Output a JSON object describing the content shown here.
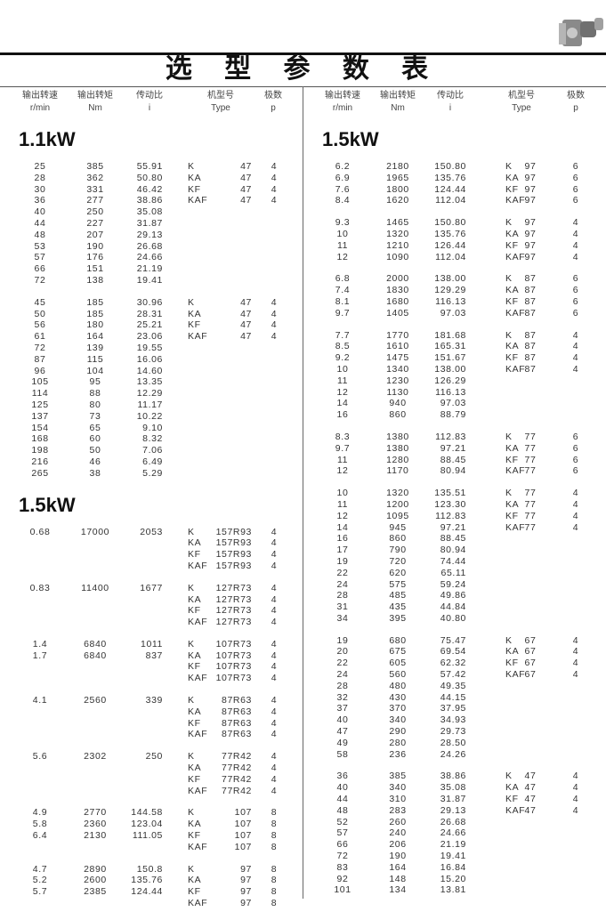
{
  "title": "选 型 参 数 表",
  "decor_icon": "gearbox-motor-image",
  "columns": [
    {
      "cn": "输出转速",
      "en": "r/min"
    },
    {
      "cn": "输出转矩",
      "en": "Nm"
    },
    {
      "cn": "传动比",
      "en": "i"
    },
    {
      "cn": "机型号",
      "en": "Type"
    },
    {
      "cn": "极数",
      "en": "p"
    }
  ],
  "left": [
    {
      "heading": "1.1kW",
      "groups": [
        {
          "rows": [
            [
              "25",
              "385",
              "55.91"
            ],
            [
              "28",
              "362",
              "50.80"
            ],
            [
              "30",
              "331",
              "46.42"
            ],
            [
              "36",
              "277",
              "38.86"
            ],
            [
              "40",
              "250",
              "35.08"
            ],
            [
              "44",
              "227",
              "31.87"
            ],
            [
              "48",
              "207",
              "29.13"
            ],
            [
              "53",
              "190",
              "26.68"
            ],
            [
              "57",
              "176",
              "24.66"
            ],
            [
              "66",
              "151",
              "21.19"
            ],
            [
              "72",
              "138",
              "19.41"
            ]
          ],
          "types": [
            [
              "K",
              "47",
              "4"
            ],
            [
              "KA",
              "47",
              "4"
            ],
            [
              "KF",
              "47",
              "4"
            ],
            [
              "KAF",
              "47",
              "4"
            ]
          ]
        },
        {
          "rows": [
            [
              "45",
              "185",
              "30.96"
            ],
            [
              "50",
              "185",
              "28.31"
            ],
            [
              "56",
              "180",
              "25.21"
            ],
            [
              "61",
              "164",
              "23.06"
            ],
            [
              "72",
              "139",
              "19.55"
            ],
            [
              "87",
              "115",
              "16.06"
            ],
            [
              "96",
              "104",
              "14.60"
            ],
            [
              "105",
              "95",
              "13.35"
            ],
            [
              "114",
              "88",
              "12.29"
            ],
            [
              "125",
              "80",
              "11.17"
            ],
            [
              "137",
              "73",
              "10.22"
            ],
            [
              "154",
              "65",
              "9.10"
            ],
            [
              "168",
              "60",
              "8.32"
            ],
            [
              "198",
              "50",
              "7.06"
            ],
            [
              "216",
              "46",
              "6.49"
            ],
            [
              "265",
              "38",
              "5.29"
            ]
          ],
          "types": [
            [
              "K",
              "47",
              "4"
            ],
            [
              "KA",
              "47",
              "4"
            ],
            [
              "KF",
              "47",
              "4"
            ],
            [
              "KAF",
              "47",
              "4"
            ]
          ]
        }
      ]
    },
    {
      "heading": "1.5kW",
      "groups": [
        {
          "rows": [
            [
              "0.68",
              "17000",
              "2053"
            ]
          ],
          "types": [
            [
              "K",
              "157R93",
              "4"
            ],
            [
              "KA",
              "157R93",
              "4"
            ],
            [
              "KF",
              "157R93",
              "4"
            ],
            [
              "KAF",
              "157R93",
              "4"
            ]
          ]
        },
        {
          "rows": [
            [
              "0.83",
              "11400",
              "1677"
            ]
          ],
          "types": [
            [
              "K",
              "127R73",
              "4"
            ],
            [
              "KA",
              "127R73",
              "4"
            ],
            [
              "KF",
              "127R73",
              "4"
            ],
            [
              "KAF",
              "127R73",
              "4"
            ]
          ]
        },
        {
          "rows": [
            [
              "1.4",
              "6840",
              "1011"
            ],
            [
              "1.7",
              "6840",
              "837"
            ]
          ],
          "types": [
            [
              "K",
              "107R73",
              "4"
            ],
            [
              "KA",
              "107R73",
              "4"
            ],
            [
              "KF",
              "107R73",
              "4"
            ],
            [
              "KAF",
              "107R73",
              "4"
            ]
          ]
        },
        {
          "rows": [
            [
              "4.1",
              "2560",
              "339"
            ]
          ],
          "types": [
            [
              "K",
              "87R63",
              "4"
            ],
            [
              "KA",
              "87R63",
              "4"
            ],
            [
              "KF",
              "87R63",
              "4"
            ],
            [
              "KAF",
              "87R63",
              "4"
            ]
          ]
        },
        {
          "rows": [
            [
              "5.6",
              "2302",
              "250"
            ]
          ],
          "types": [
            [
              "K",
              "77R42",
              "4"
            ],
            [
              "KA",
              "77R42",
              "4"
            ],
            [
              "KF",
              "77R42",
              "4"
            ],
            [
              "KAF",
              "77R42",
              "4"
            ]
          ]
        },
        {
          "rows": [
            [
              "4.9",
              "2770",
              "144.58"
            ],
            [
              "5.8",
              "2360",
              "123.04"
            ],
            [
              "6.4",
              "2130",
              "111.05"
            ]
          ],
          "types": [
            [
              "K",
              "107",
              "8"
            ],
            [
              "KA",
              "107",
              "8"
            ],
            [
              "KF",
              "107",
              "8"
            ],
            [
              "KAF",
              "107",
              "8"
            ]
          ]
        },
        {
          "rows": [
            [
              "4.7",
              "2890",
              "150.8"
            ],
            [
              "5.2",
              "2600",
              "135.76"
            ],
            [
              "5.7",
              "2385",
              "124.44"
            ]
          ],
          "types": [
            [
              "K",
              "97",
              "8"
            ],
            [
              "KA",
              "97",
              "8"
            ],
            [
              "KF",
              "97",
              "8"
            ],
            [
              "KAF",
              "97",
              "8"
            ]
          ]
        }
      ]
    }
  ],
  "right": [
    {
      "heading": "1.5kW",
      "groups": [
        {
          "rows": [
            [
              "6.2",
              "2180",
              "150.80"
            ],
            [
              "6.9",
              "1965",
              "135.76"
            ],
            [
              "7.6",
              "1800",
              "124.44"
            ],
            [
              "8.4",
              "1620",
              "112.04"
            ]
          ],
          "types": [
            [
              "K",
              "97",
              "6"
            ],
            [
              "KA",
              "97",
              "6"
            ],
            [
              "KF",
              "97",
              "6"
            ],
            [
              "KAF",
              "97",
              "6"
            ]
          ]
        },
        {
          "rows": [
            [
              "9.3",
              "1465",
              "150.80"
            ],
            [
              "10",
              "1320",
              "135.76"
            ],
            [
              "11",
              "1210",
              "126.44"
            ],
            [
              "12",
              "1090",
              "112.04"
            ]
          ],
          "types": [
            [
              "K",
              "97",
              "4"
            ],
            [
              "KA",
              "97",
              "4"
            ],
            [
              "KF",
              "97",
              "4"
            ],
            [
              "KAF",
              "97",
              "4"
            ]
          ]
        },
        {
          "rows": [
            [
              "6.8",
              "2000",
              "138.00"
            ],
            [
              "7.4",
              "1830",
              "129.29"
            ],
            [
              "8.1",
              "1680",
              "116.13"
            ],
            [
              "9.7",
              "1405",
              "97.03"
            ]
          ],
          "types": [
            [
              "K",
              "87",
              "6"
            ],
            [
              "KA",
              "87",
              "6"
            ],
            [
              "KF",
              "87",
              "6"
            ],
            [
              "KAF",
              "87",
              "6"
            ]
          ]
        },
        {
          "rows": [
            [
              "7.7",
              "1770",
              "181.68"
            ],
            [
              "8.5",
              "1610",
              "165.31"
            ],
            [
              "9.2",
              "1475",
              "151.67"
            ],
            [
              "10",
              "1340",
              "138.00"
            ],
            [
              "11",
              "1230",
              "126.29"
            ],
            [
              "12",
              "1130",
              "116.13"
            ],
            [
              "14",
              "940",
              "97.03"
            ],
            [
              "16",
              "860",
              "88.79"
            ]
          ],
          "types": [
            [
              "K",
              "87",
              "4"
            ],
            [
              "KA",
              "87",
              "4"
            ],
            [
              "KF",
              "87",
              "4"
            ],
            [
              "KAF",
              "87",
              "4"
            ]
          ]
        },
        {
          "rows": [
            [
              "8.3",
              "1380",
              "112.83"
            ],
            [
              "9.7",
              "1380",
              "97.21"
            ],
            [
              "11",
              "1280",
              "88.45"
            ],
            [
              "12",
              "1170",
              "80.94"
            ]
          ],
          "types": [
            [
              "K",
              "77",
              "6"
            ],
            [
              "KA",
              "77",
              "6"
            ],
            [
              "KF",
              "77",
              "6"
            ],
            [
              "KAF",
              "77",
              "6"
            ]
          ]
        },
        {
          "rows": [
            [
              "10",
              "1320",
              "135.51"
            ],
            [
              "11",
              "1200",
              "123.30"
            ],
            [
              "12",
              "1095",
              "112.83"
            ],
            [
              "14",
              "945",
              "97.21"
            ],
            [
              "16",
              "860",
              "88.45"
            ],
            [
              "17",
              "790",
              "80.94"
            ],
            [
              "19",
              "720",
              "74.44"
            ],
            [
              "22",
              "620",
              "65.11"
            ],
            [
              "24",
              "575",
              "59.24"
            ],
            [
              "28",
              "485",
              "49.86"
            ],
            [
              "31",
              "435",
              "44.84"
            ],
            [
              "34",
              "395",
              "40.80"
            ]
          ],
          "types": [
            [
              "K",
              "77",
              "4"
            ],
            [
              "KA",
              "77",
              "4"
            ],
            [
              "KF",
              "77",
              "4"
            ],
            [
              "KAF",
              "77",
              "4"
            ]
          ]
        },
        {
          "rows": [
            [
              "19",
              "680",
              "75.47"
            ],
            [
              "20",
              "675",
              "69.54"
            ],
            [
              "22",
              "605",
              "62.32"
            ],
            [
              "24",
              "560",
              "57.42"
            ],
            [
              "28",
              "480",
              "49.35"
            ],
            [
              "32",
              "430",
              "44.15"
            ],
            [
              "37",
              "370",
              "37.95"
            ],
            [
              "40",
              "340",
              "34.93"
            ],
            [
              "47",
              "290",
              "29.73"
            ],
            [
              "49",
              "280",
              "28.50"
            ],
            [
              "58",
              "236",
              "24.26"
            ]
          ],
          "types": [
            [
              "K",
              "67",
              "4"
            ],
            [
              "KA",
              "67",
              "4"
            ],
            [
              "KF",
              "67",
              "4"
            ],
            [
              "KAF",
              "67",
              "4"
            ]
          ]
        },
        {
          "rows": [
            [
              "36",
              "385",
              "38.86"
            ],
            [
              "40",
              "340",
              "35.08"
            ],
            [
              "44",
              "310",
              "31.87"
            ],
            [
              "48",
              "283",
              "29.13"
            ],
            [
              "52",
              "260",
              "26.68"
            ],
            [
              "57",
              "240",
              "24.66"
            ],
            [
              "66",
              "206",
              "21.19"
            ],
            [
              "72",
              "190",
              "19.41"
            ],
            [
              "83",
              "164",
              "16.84"
            ],
            [
              "92",
              "148",
              "15.20"
            ],
            [
              "101",
              "134",
              "13.81"
            ]
          ],
          "types": [
            [
              "K",
              "47",
              "4"
            ],
            [
              "KA",
              "47",
              "4"
            ],
            [
              "KF",
              "47",
              "4"
            ],
            [
              "KAF",
              "47",
              "4"
            ]
          ]
        }
      ]
    }
  ]
}
